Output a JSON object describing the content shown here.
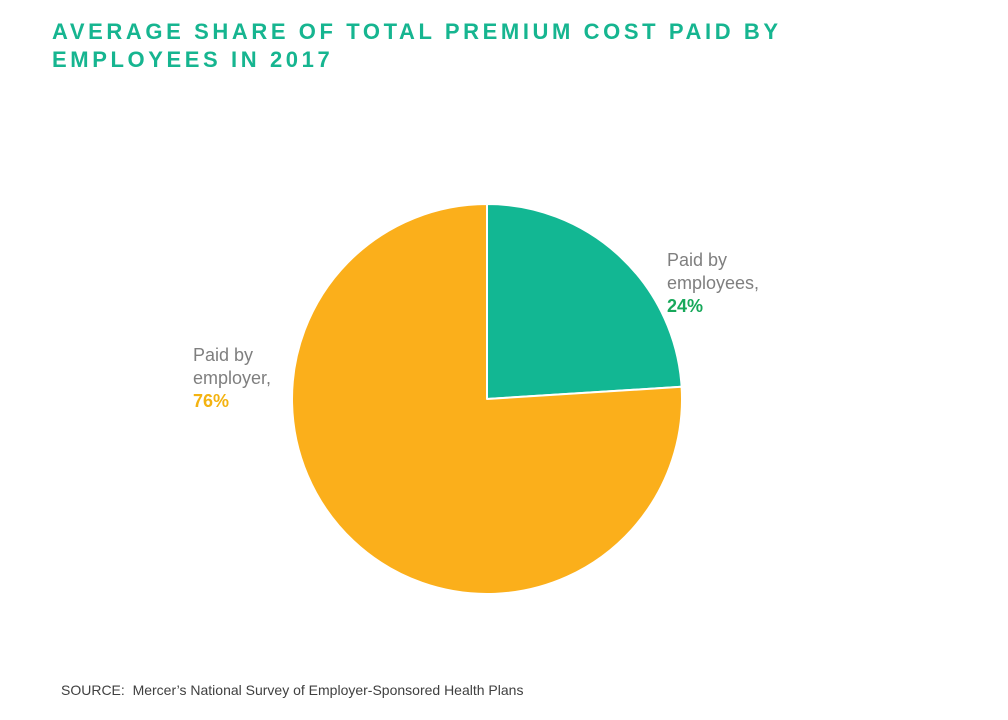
{
  "title": "AVERAGE SHARE OF TOTAL PREMIUM COST PAID BY EMPLOYEES IN 2017",
  "source": "SOURCE:  Mercer’s National Survey of Employer-Sponsored Health Plans",
  "chart_data": {
    "type": "pie",
    "title": "AVERAGE SHARE OF TOTAL PREMIUM COST PAID BY EMPLOYEES IN 2017",
    "start_angle": "12 o'clock, clockwise",
    "slices": [
      {
        "name_line1": "Paid by",
        "name_line2": "employees,",
        "value": 24,
        "value_label": "24%",
        "color": "#12b793",
        "label_color": "#17a85a"
      },
      {
        "name_line1": "Paid by",
        "name_line2": "employer,",
        "value": 76,
        "value_label": "76%",
        "color": "#fbaf1b",
        "label_color": "#f4b311"
      }
    ]
  }
}
